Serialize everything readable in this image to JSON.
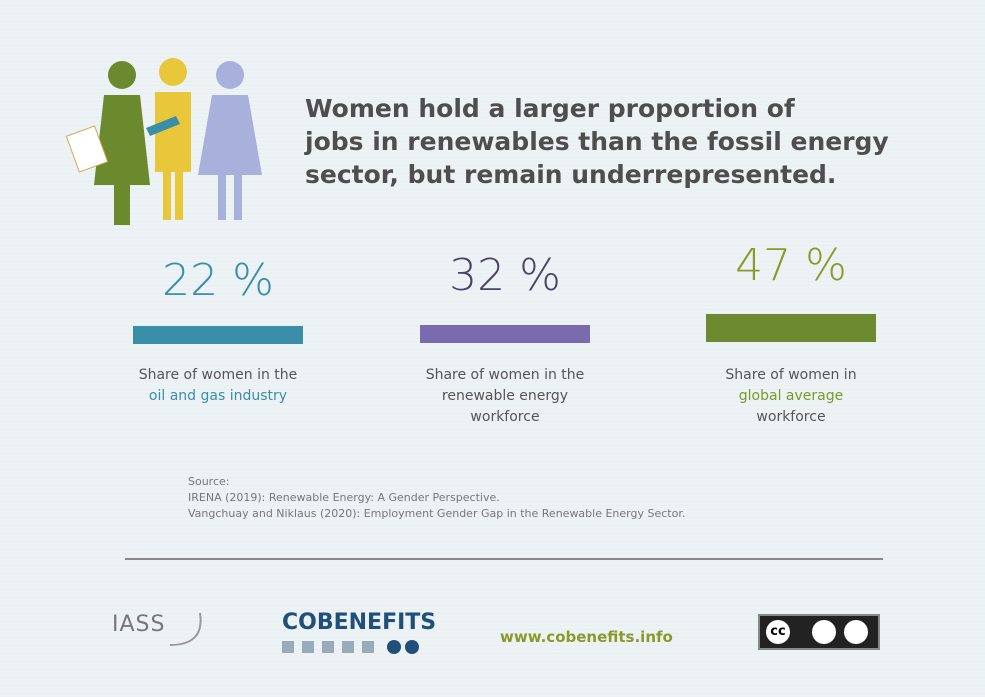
{
  "header": {
    "title_lines": [
      "Women hold a larger proportion of",
      "jobs in renewables than the fossil energy",
      "sector, but remain underrepresented."
    ]
  },
  "stats": [
    {
      "value": "22 %",
      "lines": [
        "Share of women in the",
        "oil and gas industry"
      ]
    },
    {
      "value": "32 %",
      "lines": [
        "Share of women in the",
        "renewable energy",
        "workforce"
      ]
    },
    {
      "value": "47 %",
      "lines": [
        "Share of women in",
        "global average",
        "workforce"
      ]
    }
  ],
  "source": {
    "label": "Source:",
    "lines": [
      "IRENA (2019): Renewable Energy: A Gender Perspective.",
      "Vangchuay and Niklaus (2020): Employment Gender Gap in the Renewable Energy Sector."
    ]
  },
  "footer": {
    "logo_left": "IASS",
    "logo_center": "COBENEFITS",
    "url": "www.cobenefits.info",
    "license": "cc"
  }
}
